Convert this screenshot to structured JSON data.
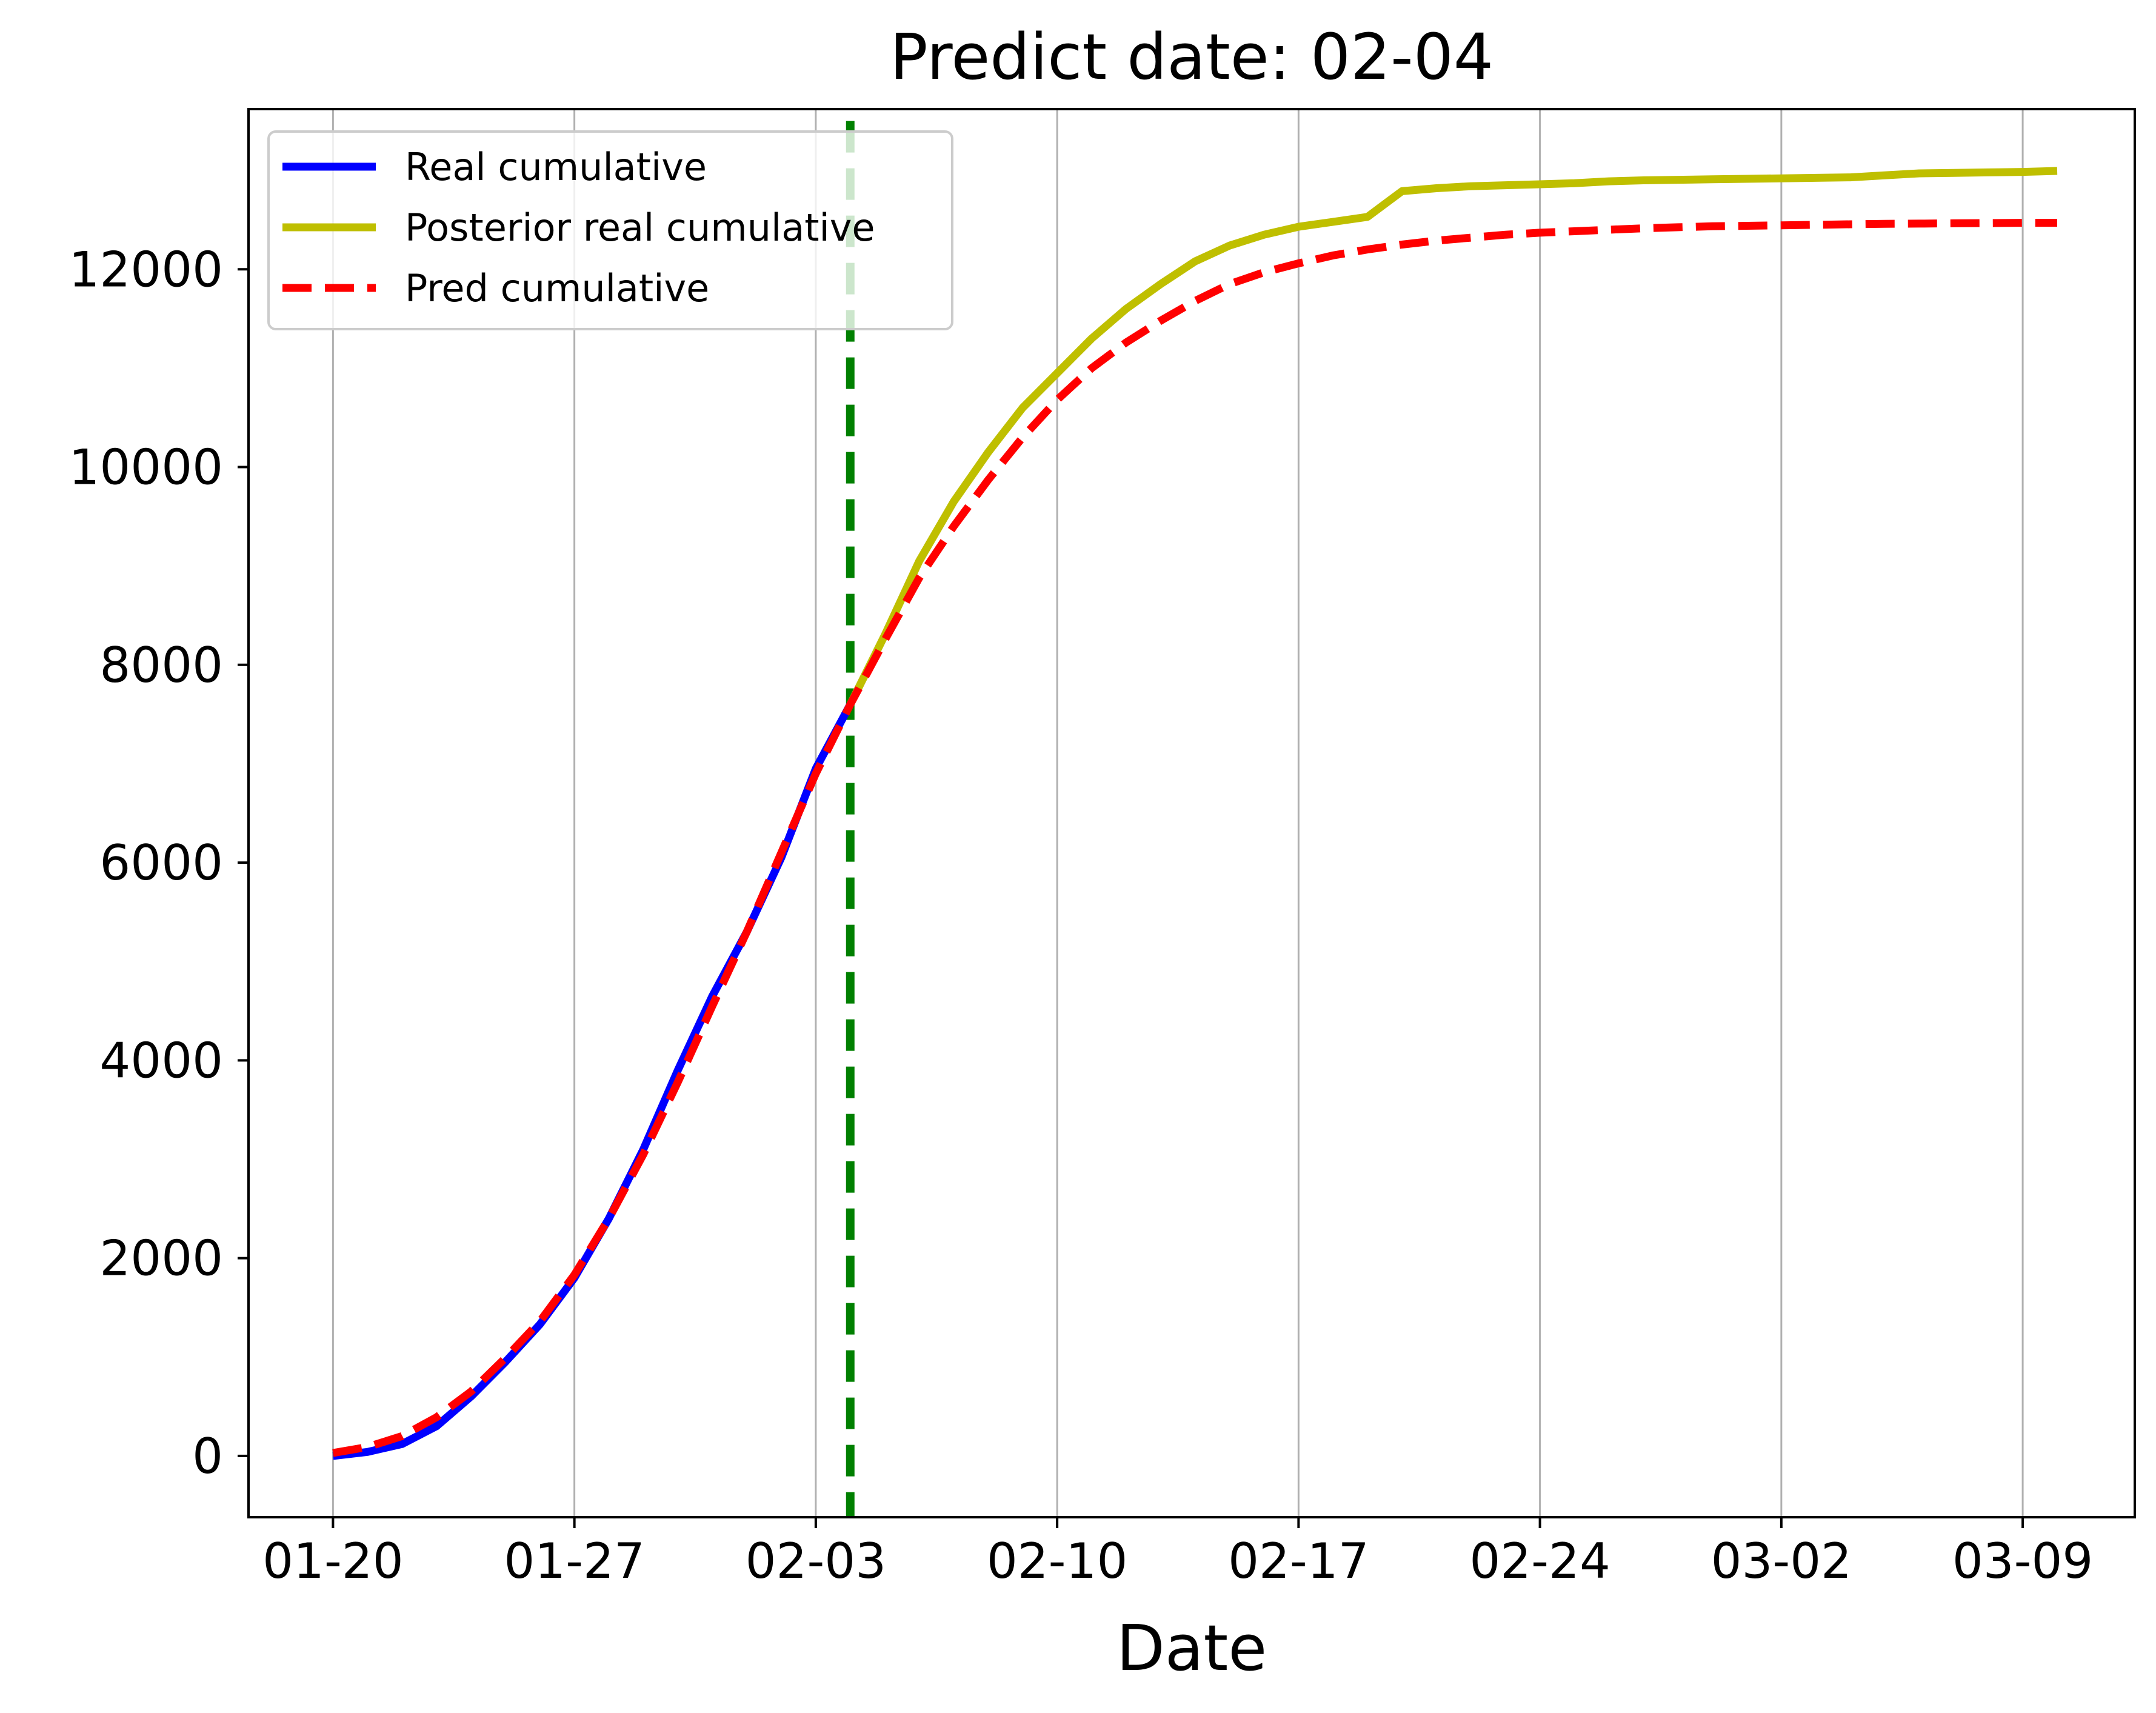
{
  "chart_data": {
    "type": "line",
    "title": "Predict date: 02-04",
    "xlabel": "Date",
    "ylabel": "",
    "x_unit": "day",
    "x_start_date": "01-20",
    "x_ticks": [
      "01-20",
      "01-27",
      "02-03",
      "02-10",
      "02-17",
      "02-24",
      "03-02",
      "03-09"
    ],
    "x_tick_values": [
      0,
      7,
      14,
      21,
      28,
      35,
      42,
      49
    ],
    "xlim": [
      -2.45,
      52.25
    ],
    "y_ticks": [
      0,
      2000,
      4000,
      6000,
      8000,
      10000,
      12000
    ],
    "ylim": [
      -620,
      13620
    ],
    "grid": "x-only",
    "legend": "top-left",
    "predict_line_x": 15,
    "colors": {
      "real": "#0000ff",
      "posterior": "#bfbf00",
      "pred": "#ff0000",
      "predict_line": "#008000",
      "grid": "#b0b0b0"
    },
    "series": [
      {
        "name": "Real cumulative",
        "key": "real",
        "style": "solid",
        "x": [
          0,
          1,
          2,
          3,
          4,
          5,
          6,
          7,
          8,
          9,
          10,
          11,
          12,
          13,
          14,
          15
        ],
        "values": [
          0,
          40,
          120,
          300,
          600,
          950,
          1330,
          1800,
          2400,
          3100,
          3900,
          4650,
          5300,
          6050,
          6950,
          7600
        ]
      },
      {
        "name": "Posterior real cumulative",
        "key": "posterior",
        "style": "solid",
        "x": [
          15,
          16,
          17,
          18,
          19,
          20,
          21,
          22,
          23,
          24,
          25,
          26,
          27,
          28,
          29,
          30,
          31,
          32,
          33,
          34,
          35,
          36,
          37,
          38,
          39,
          40,
          41,
          42,
          43,
          44,
          45,
          46,
          47,
          48,
          49,
          50
        ],
        "values": [
          7600,
          8300,
          9050,
          9650,
          10150,
          10600,
          10950,
          11300,
          11600,
          11850,
          12080,
          12240,
          12350,
          12430,
          12480,
          12530,
          12790,
          12820,
          12840,
          12850,
          12860,
          12870,
          12890,
          12900,
          12905,
          12910,
          12915,
          12920,
          12925,
          12930,
          12950,
          12970,
          12975,
          12980,
          12985,
          12995
        ]
      },
      {
        "name": "Pred cumulative",
        "key": "pred",
        "style": "dashed",
        "x": [
          0,
          1,
          2,
          3,
          4,
          5,
          6,
          7,
          8,
          9,
          10,
          11,
          12,
          13,
          14,
          15,
          16,
          17,
          18,
          19,
          20,
          21,
          22,
          23,
          24,
          25,
          26,
          27,
          28,
          29,
          30,
          31,
          32,
          33,
          34,
          35,
          36,
          37,
          38,
          39,
          40,
          41,
          42,
          43,
          44,
          45,
          46,
          47,
          48,
          49,
          50
        ],
        "values": [
          30,
          90,
          200,
          390,
          650,
          990,
          1360,
          1830,
          2400,
          3050,
          3780,
          4550,
          5300,
          6100,
          6900,
          7600,
          8250,
          8880,
          9400,
          9870,
          10300,
          10680,
          11000,
          11260,
          11480,
          11680,
          11850,
          11970,
          12060,
          12140,
          12200,
          12250,
          12290,
          12320,
          12350,
          12370,
          12385,
          12400,
          12415,
          12425,
          12435,
          12440,
          12445,
          12450,
          12455,
          12460,
          12462,
          12465,
          12467,
          12470,
          12470
        ]
      }
    ]
  }
}
